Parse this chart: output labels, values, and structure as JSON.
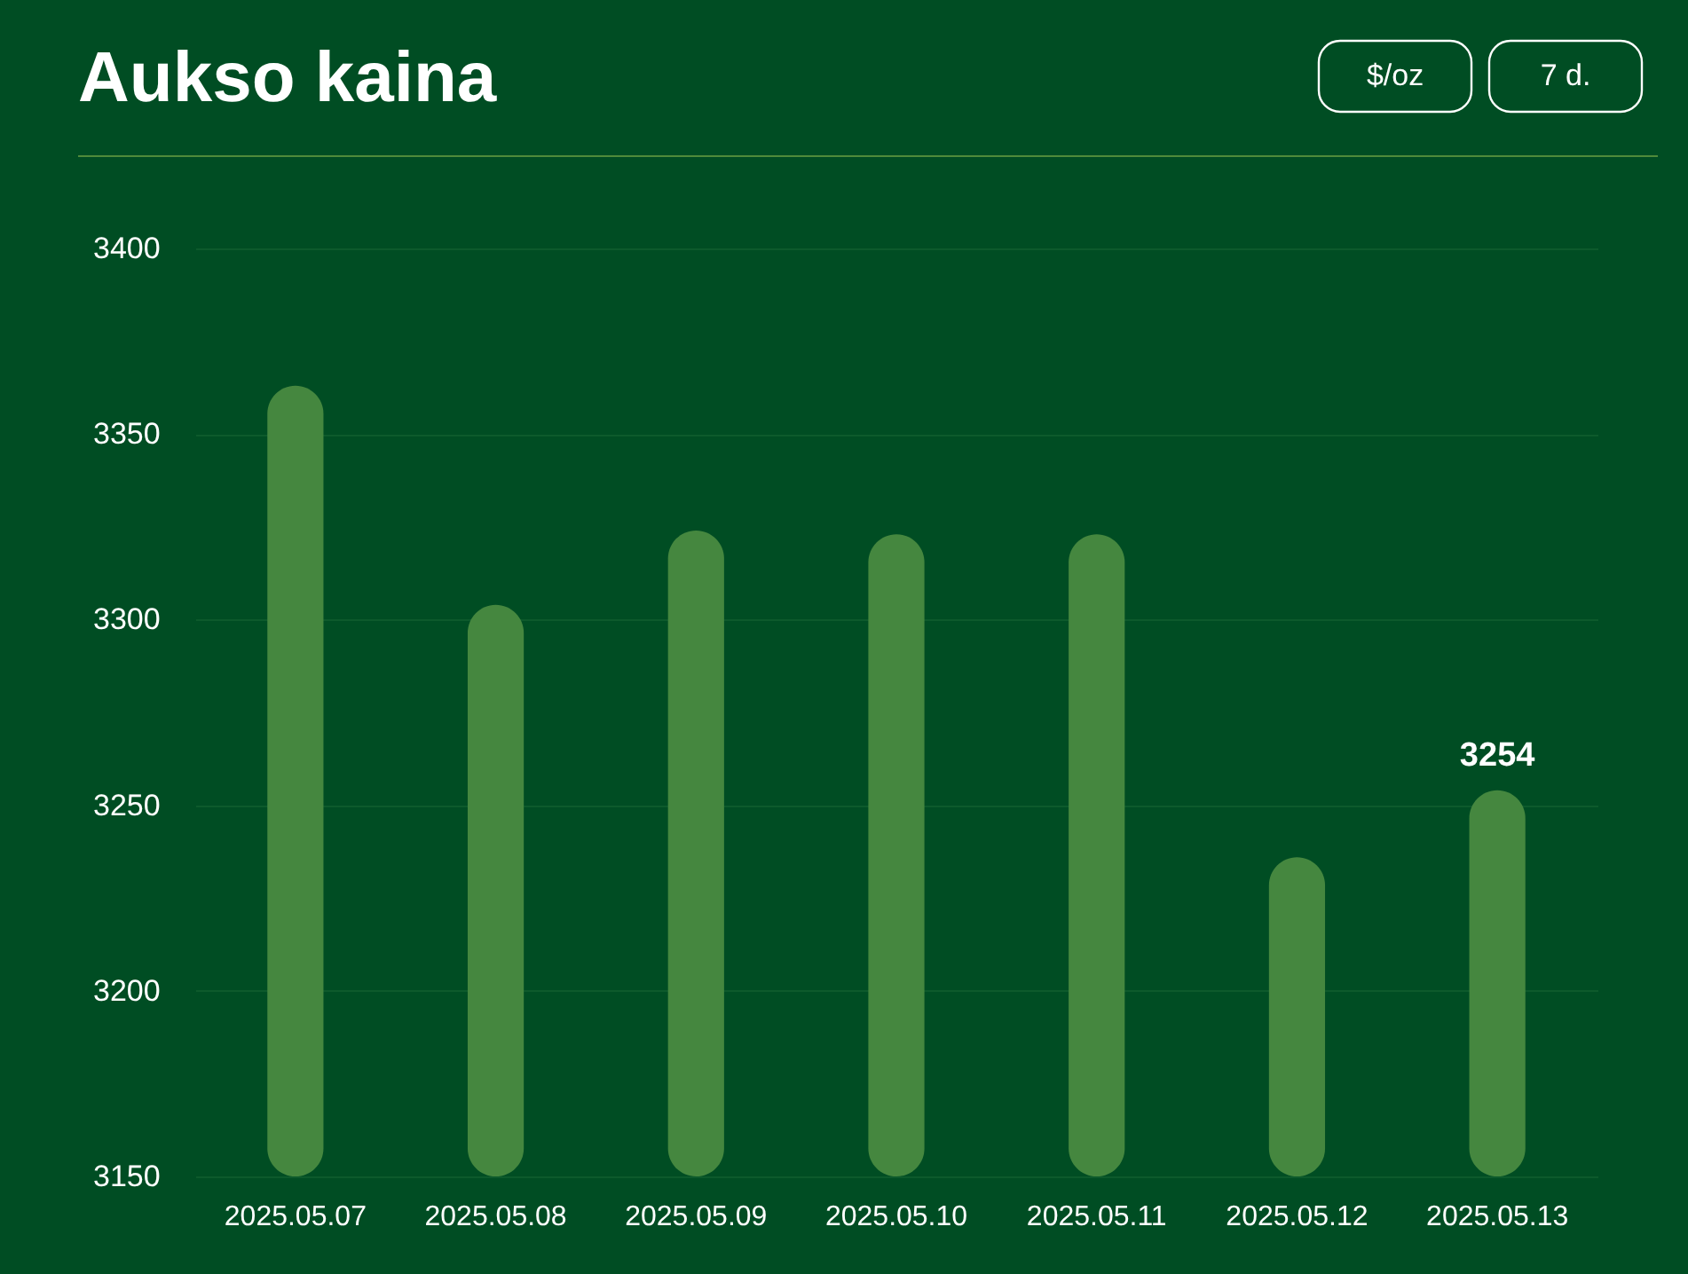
{
  "chart_data": {
    "type": "bar",
    "title": "Aukso kaina",
    "annotations": [
      "$/oz",
      "7 d."
    ],
    "categories": [
      "2025.05.07",
      "2025.05.08",
      "2025.05.09",
      "2025.05.10",
      "2025.05.11",
      "2025.05.12",
      "2025.05.13"
    ],
    "values": [
      3363,
      3304,
      3324,
      3323,
      3323,
      3236,
      3254
    ],
    "value_labels": [
      null,
      null,
      null,
      null,
      null,
      null,
      "3254"
    ],
    "color": "#45873f",
    "ylim": [
      3150,
      3400
    ],
    "yticks": [
      3150,
      3200,
      3250,
      3300,
      3350,
      3400
    ],
    "grid": "y"
  }
}
